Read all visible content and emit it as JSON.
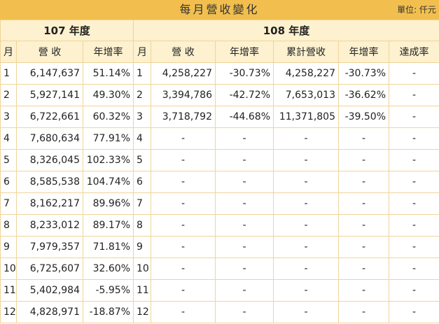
{
  "title": "每月營收變化",
  "unit": "單位: 仟元",
  "year_a_label": "107 年度",
  "year_b_label": "108 年度",
  "headers": {
    "a_month": "月",
    "a_revenue": "營 收",
    "a_yoy": "年增率",
    "b_month": "月",
    "b_revenue": "營 收",
    "b_yoy": "年增率",
    "b_cum": "累計營收",
    "b_cum_yoy": "年增率",
    "b_ach": "達成率"
  },
  "rows": [
    {
      "a_month": "1",
      "a_revenue": "6,147,637",
      "a_yoy": "51.14%",
      "b_month": "1",
      "b_revenue": "4,258,227",
      "b_yoy": "-30.73%",
      "b_cum": "4,258,227",
      "b_cum_yoy": "-30.73%",
      "b_ach": "-"
    },
    {
      "a_month": "2",
      "a_revenue": "5,927,141",
      "a_yoy": "49.30%",
      "b_month": "2",
      "b_revenue": "3,394,786",
      "b_yoy": "-42.72%",
      "b_cum": "7,653,013",
      "b_cum_yoy": "-36.62%",
      "b_ach": "-"
    },
    {
      "a_month": "3",
      "a_revenue": "6,722,661",
      "a_yoy": "60.32%",
      "b_month": "3",
      "b_revenue": "3,718,792",
      "b_yoy": "-44.68%",
      "b_cum": "11,371,805",
      "b_cum_yoy": "-39.50%",
      "b_ach": "-"
    },
    {
      "a_month": "4",
      "a_revenue": "7,680,634",
      "a_yoy": "77.91%",
      "b_month": "4",
      "b_revenue": "-",
      "b_yoy": "-",
      "b_cum": "-",
      "b_cum_yoy": "-",
      "b_ach": "-"
    },
    {
      "a_month": "5",
      "a_revenue": "8,326,045",
      "a_yoy": "102.33%",
      "b_month": "5",
      "b_revenue": "-",
      "b_yoy": "-",
      "b_cum": "-",
      "b_cum_yoy": "-",
      "b_ach": "-"
    },
    {
      "a_month": "6",
      "a_revenue": "8,585,538",
      "a_yoy": "104.74%",
      "b_month": "6",
      "b_revenue": "-",
      "b_yoy": "-",
      "b_cum": "-",
      "b_cum_yoy": "-",
      "b_ach": "-"
    },
    {
      "a_month": "7",
      "a_revenue": "8,162,217",
      "a_yoy": "89.96%",
      "b_month": "7",
      "b_revenue": "-",
      "b_yoy": "-",
      "b_cum": "-",
      "b_cum_yoy": "-",
      "b_ach": "-"
    },
    {
      "a_month": "8",
      "a_revenue": "8,233,012",
      "a_yoy": "89.17%",
      "b_month": "8",
      "b_revenue": "-",
      "b_yoy": "-",
      "b_cum": "-",
      "b_cum_yoy": "-",
      "b_ach": "-"
    },
    {
      "a_month": "9",
      "a_revenue": "7,979,357",
      "a_yoy": "71.81%",
      "b_month": "9",
      "b_revenue": "-",
      "b_yoy": "-",
      "b_cum": "-",
      "b_cum_yoy": "-",
      "b_ach": "-"
    },
    {
      "a_month": "10",
      "a_revenue": "6,725,607",
      "a_yoy": "32.60%",
      "b_month": "10",
      "b_revenue": "-",
      "b_yoy": "-",
      "b_cum": "-",
      "b_cum_yoy": "-",
      "b_ach": "-"
    },
    {
      "a_month": "11",
      "a_revenue": "5,402,984",
      "a_yoy": "-5.95%",
      "b_month": "11",
      "b_revenue": "-",
      "b_yoy": "-",
      "b_cum": "-",
      "b_cum_yoy": "-",
      "b_ach": "-"
    },
    {
      "a_month": "12",
      "a_revenue": "4,828,971",
      "a_yoy": "-18.87%",
      "b_month": "12",
      "b_revenue": "-",
      "b_yoy": "-",
      "b_cum": "-",
      "b_cum_yoy": "-",
      "b_ach": "-"
    }
  ]
}
